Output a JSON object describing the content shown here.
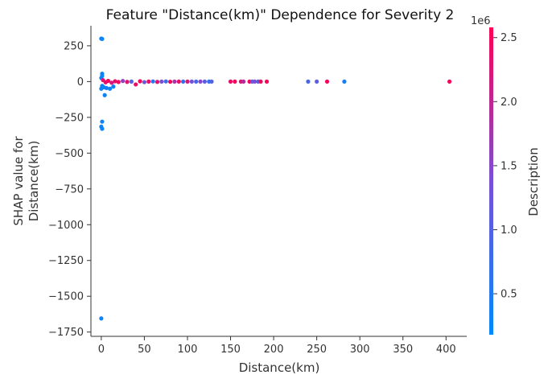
{
  "chart_data": {
    "type": "scatter",
    "title": "Feature \"Distance(km)\" Dependence for Severity 2",
    "xlabel": "Distance(km)",
    "ylabel": "SHAP value for\nDistance(km)",
    "xlim": [
      -12,
      424
    ],
    "ylim": [
      -1780,
      390
    ],
    "xticks": [
      0,
      50,
      100,
      150,
      200,
      250,
      300,
      350,
      400
    ],
    "yticks": [
      250,
      0,
      -250,
      -500,
      -750,
      -1000,
      -1250,
      -1500,
      -1750
    ],
    "colorbar": {
      "label": "Description",
      "offset_text": "1e6",
      "range": [
        0.18,
        2.58
      ],
      "ticks": [
        0.5,
        1.0,
        1.5,
        2.0,
        2.5
      ],
      "colors": [
        "#008afb",
        "#ff0052"
      ]
    },
    "points": [
      {
        "x": 0,
        "y": 300,
        "c": 0.3
      },
      {
        "x": 1,
        "y": 298,
        "c": 0.3
      },
      {
        "x": 1,
        "y": 55,
        "c": 0.3
      },
      {
        "x": 1,
        "y": 40,
        "c": 0.3
      },
      {
        "x": 0,
        "y": 25,
        "c": 0.3
      },
      {
        "x": 1,
        "y": -30,
        "c": 0.3
      },
      {
        "x": 0,
        "y": -50,
        "c": 0.3
      },
      {
        "x": 3,
        "y": -40,
        "c": 0.3
      },
      {
        "x": 6,
        "y": -45,
        "c": 0.4
      },
      {
        "x": 10,
        "y": -50,
        "c": 0.3
      },
      {
        "x": 14,
        "y": -35,
        "c": 0.4
      },
      {
        "x": 4,
        "y": -95,
        "c": 0.3
      },
      {
        "x": 1,
        "y": -280,
        "c": 0.3
      },
      {
        "x": 0,
        "y": -315,
        "c": 0.3
      },
      {
        "x": 1,
        "y": -330,
        "c": 0.3
      },
      {
        "x": 0,
        "y": -1655,
        "c": 0.3
      },
      {
        "x": 2,
        "y": 10,
        "c": 2.3
      },
      {
        "x": 5,
        "y": -5,
        "c": 2.4
      },
      {
        "x": 8,
        "y": 5,
        "c": 2.5
      },
      {
        "x": 12,
        "y": -8,
        "c": 2.2
      },
      {
        "x": 16,
        "y": 2,
        "c": 2.4
      },
      {
        "x": 20,
        "y": -3,
        "c": 2.5
      },
      {
        "x": 25,
        "y": 4,
        "c": 1.6
      },
      {
        "x": 30,
        "y": -2,
        "c": 2.3
      },
      {
        "x": 35,
        "y": 0,
        "c": 1.0
      },
      {
        "x": 40,
        "y": -20,
        "c": 2.4
      },
      {
        "x": 45,
        "y": 2,
        "c": 2.5
      },
      {
        "x": 50,
        "y": -4,
        "c": 1.2
      },
      {
        "x": 55,
        "y": 0,
        "c": 2.4
      },
      {
        "x": 60,
        "y": 1,
        "c": 0.6
      },
      {
        "x": 65,
        "y": -2,
        "c": 2.3
      },
      {
        "x": 70,
        "y": 0,
        "c": 1.4
      },
      {
        "x": 75,
        "y": 1,
        "c": 0.8
      },
      {
        "x": 80,
        "y": -1,
        "c": 2.5
      },
      {
        "x": 85,
        "y": 0,
        "c": 1.8
      },
      {
        "x": 90,
        "y": 0,
        "c": 2.4
      },
      {
        "x": 95,
        "y": 0,
        "c": 0.7
      },
      {
        "x": 100,
        "y": 0,
        "c": 2.2
      },
      {
        "x": 105,
        "y": 0,
        "c": 1.3
      },
      {
        "x": 110,
        "y": 0,
        "c": 0.9
      },
      {
        "x": 115,
        "y": 0,
        "c": 1.5
      },
      {
        "x": 120,
        "y": 0,
        "c": 1.1
      },
      {
        "x": 125,
        "y": 0,
        "c": 0.7
      },
      {
        "x": 128,
        "y": 0,
        "c": 1.0
      },
      {
        "x": 150,
        "y": 0,
        "c": 2.4
      },
      {
        "x": 155,
        "y": 0,
        "c": 2.5
      },
      {
        "x": 162,
        "y": 0,
        "c": 2.3
      },
      {
        "x": 165,
        "y": 0,
        "c": 1.9
      },
      {
        "x": 172,
        "y": 0,
        "c": 2.5
      },
      {
        "x": 175,
        "y": 0,
        "c": 1.2
      },
      {
        "x": 178,
        "y": 0,
        "c": 1.4
      },
      {
        "x": 182,
        "y": 0,
        "c": 1.0
      },
      {
        "x": 185,
        "y": 0,
        "c": 2.4
      },
      {
        "x": 192,
        "y": 0,
        "c": 2.5
      },
      {
        "x": 240,
        "y": 0,
        "c": 0.9
      },
      {
        "x": 250,
        "y": 0,
        "c": 1.1
      },
      {
        "x": 262,
        "y": 0,
        "c": 2.5
      },
      {
        "x": 282,
        "y": 0,
        "c": 0.4
      },
      {
        "x": 404,
        "y": 0,
        "c": 2.5
      }
    ]
  }
}
